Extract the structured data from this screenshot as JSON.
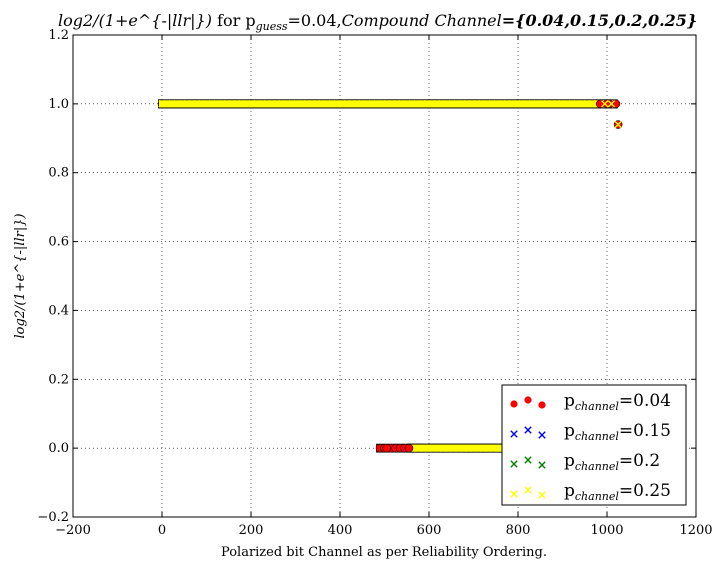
{
  "chart_data": {
    "type": "scatter",
    "title": {
      "math": "log2/(1+e^{-|llr|})",
      "for": " for p",
      "guess_sub": "guess",
      "mid": "=0.04,",
      "compound": "Compound Channel",
      "values": "={0.04,0.15,0.2,0.25}"
    },
    "xlabel": "Polarized bit Channel as per Reliability Ordering.",
    "ylabel": "log2/(1+e^{-|llr|})",
    "xlim": [
      -200,
      1200
    ],
    "ylim": [
      -0.2,
      1.2
    ],
    "xticks": [
      "−200",
      "0",
      "200",
      "400",
      "600",
      "800",
      "1000",
      "1200"
    ],
    "yticks": [
      "−0.2",
      "0.0",
      "0.2",
      "0.4",
      "0.6",
      "0.8",
      "1.0",
      "1.2"
    ],
    "grid": true,
    "legend_position": "lower-right",
    "series": [
      {
        "name_prefix": "p",
        "name_sub": "channel",
        "name_value": "=0.04",
        "marker": "o",
        "color": "#ff0000",
        "high": [
          [
            0,
            1.0
          ],
          [
            1000,
            1.0
          ]
        ],
        "low": [
          [
            490,
            0.0
          ],
          [
            575,
            0.0
          ]
        ],
        "points": [
          [
            1020,
            1.0
          ],
          [
            1025,
            0.94
          ],
          [
            490,
            0.0
          ],
          [
            500,
            0.0
          ],
          [
            505,
            0.0
          ],
          [
            525,
            0.0
          ],
          [
            535,
            0.0
          ],
          [
            545,
            0.0
          ],
          [
            555,
            0.0
          ],
          [
            1005,
            1.0
          ],
          [
            1000,
            1.0
          ],
          [
            985,
            1.0
          ]
        ]
      },
      {
        "name_prefix": "p",
        "name_sub": "channel",
        "name_value": "=0.15",
        "marker": "x",
        "color": "#0000ff",
        "high": [
          [
            0,
            1.0
          ],
          [
            1015,
            1.0
          ]
        ],
        "low": [
          [
            560,
            0.0
          ],
          [
            790,
            0.0
          ]
        ],
        "points": [
          [
            1025,
            0.94
          ]
        ]
      },
      {
        "name_prefix": "p",
        "name_sub": "channel",
        "name_value": "=0.2",
        "marker": "x",
        "color": "#008000",
        "high": [
          [
            0,
            1.0
          ],
          [
            1015,
            1.0
          ]
        ],
        "low": [
          [
            560,
            0.0
          ],
          [
            790,
            0.0
          ]
        ],
        "points": [
          [
            1025,
            0.94
          ]
        ]
      },
      {
        "name_prefix": "p",
        "name_sub": "channel",
        "name_value": "=0.25",
        "marker": "x",
        "color": "#ffff00",
        "high": [
          [
            0,
            1.0
          ],
          [
            1015,
            1.0
          ]
        ],
        "low": [
          [
            565,
            0.0
          ],
          [
            790,
            0.0
          ]
        ],
        "points": [
          [
            1025,
            0.94
          ],
          [
            1010,
            1.0
          ],
          [
            995,
            1.0
          ]
        ]
      }
    ]
  }
}
